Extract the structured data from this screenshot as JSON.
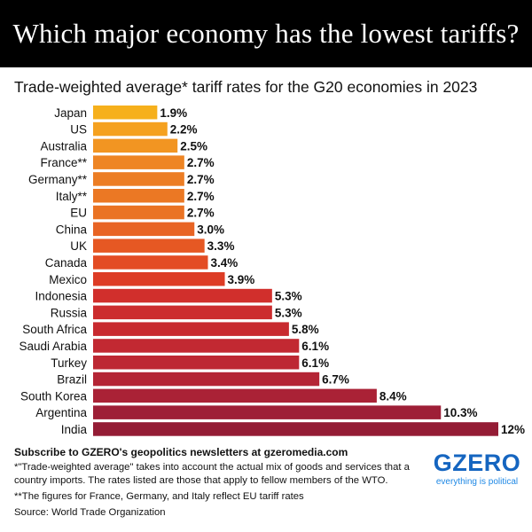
{
  "header": {
    "title": "Which major economy has the lowest tariffs?",
    "subtitle": "Trade-weighted average* tariff rates for the G20 economies in 2023"
  },
  "chart_data": {
    "type": "bar",
    "orientation": "horizontal",
    "title": "Trade-weighted average* tariff rates for the G20 economies in 2023",
    "xlabel": "",
    "ylabel": "",
    "unit": "%",
    "xlim": [
      0,
      12
    ],
    "categories": [
      "Japan",
      "US",
      "Australia",
      "France**",
      "Germany**",
      "Italy**",
      "EU",
      "China",
      "UK",
      "Canada",
      "Mexico",
      "Indonesia",
      "Russia",
      "South Africa",
      "Saudi Arabia",
      "Turkey",
      "Brazil",
      "South Korea",
      "Argentina",
      "India"
    ],
    "values": [
      1.9,
      2.2,
      2.5,
      2.7,
      2.7,
      2.7,
      2.7,
      3.0,
      3.3,
      3.4,
      3.9,
      5.3,
      5.3,
      5.8,
      6.1,
      6.1,
      6.7,
      8.4,
      10.3,
      12
    ],
    "labels": [
      "1.9%",
      "2.2%",
      "2.5%",
      "2.7%",
      "2.7%",
      "2.7%",
      "2.7%",
      "3.0%",
      "3.3%",
      "3.4%",
      "3.9%",
      "5.3%",
      "5.3%",
      "5.8%",
      "6.1%",
      "6.1%",
      "6.7%",
      "8.4%",
      "10.3%",
      "12%"
    ],
    "colors": [
      "#f6b01c",
      "#f5a11f",
      "#f29522",
      "#ee8524",
      "#ec7d24",
      "#eb7824",
      "#ea7324",
      "#e86424",
      "#e65823",
      "#e34c24",
      "#dd3c25",
      "#d12f2c",
      "#cc2c2e",
      "#c82a2f",
      "#c22932",
      "#bd2833",
      "#b42535",
      "#aa2236",
      "#9e1f37",
      "#941c35"
    ],
    "grid": false,
    "legend": "none"
  },
  "footer": {
    "subscribe": "Subscribe to GZERO's geopolitics newsletters at gzeromedia.com",
    "note1": "*\"Trade-weighted average\" takes into account the actual mix of goods and services that a country imports. The rates listed are those that apply to fellow members of the WTO.",
    "note2": "**The figures for France, Germany, and Italy reflect EU tariff rates",
    "source": "Source: World Trade Organization"
  },
  "logo": {
    "wordmark": "GZERO",
    "tagline": "everything is political",
    "color": "#1565c0"
  }
}
